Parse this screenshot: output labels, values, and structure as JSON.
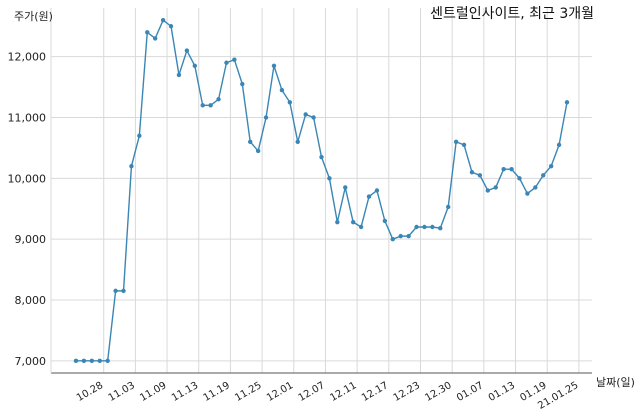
{
  "chart_data": {
    "type": "line",
    "title": "센트럴인사이트, 최근 3개월",
    "ylabel": "주가(원)",
    "xlabel": "날짜(일)",
    "ylim": [
      6800,
      12800
    ],
    "yticks": [
      7000,
      8000,
      9000,
      10000,
      11000,
      12000
    ],
    "ytick_labels": [
      "7,000",
      "8,000",
      "9,000",
      "10,000",
      "11,000",
      "12,000"
    ],
    "xtick_labels": [
      "10.28",
      "11.03",
      "11.09",
      "11.13",
      "11.19",
      "11.25",
      "12.01",
      "12.07",
      "12.11",
      "12.17",
      "12.23",
      "12.30",
      "01.07",
      "01.13",
      "01.19",
      "21.01.25"
    ],
    "xtick_positions": [
      3.5,
      7.5,
      11.5,
      15.5,
      19.5,
      23.5,
      27.5,
      31.5,
      35.5,
      39.5,
      43.5,
      47.5,
      51.5,
      55.5,
      59.5,
      63.5
    ],
    "grid": true,
    "line_color": "#3a86b4",
    "series": [
      {
        "values": [
          7000,
          7000,
          7000,
          7000,
          7000,
          8150,
          8150,
          10200,
          10700,
          12400,
          12300,
          12600,
          12500,
          11700,
          12100,
          11850,
          11200,
          11200,
          11300,
          11900,
          11950,
          11550,
          10600,
          10450,
          11000,
          11850,
          11450,
          11250,
          10600,
          11050,
          11000,
          10350,
          10000,
          9280,
          9850,
          9280,
          9200,
          9700,
          9800,
          9300,
          9000,
          9050,
          9050,
          9200,
          9200,
          9200,
          9180,
          9530,
          10600,
          10550,
          10100,
          10050,
          9800,
          9850,
          10150,
          10150,
          10000,
          9750,
          9850,
          10050,
          10200,
          10550,
          11250
        ]
      }
    ]
  }
}
